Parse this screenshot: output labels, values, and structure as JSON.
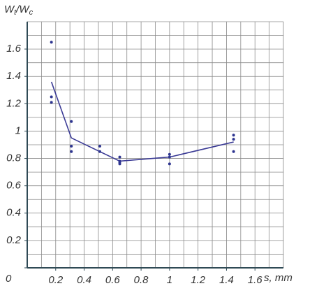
{
  "chart_data": {
    "type": "scatter",
    "y_label_parts": [
      "W",
      "t",
      "/W",
      "c"
    ],
    "x_label": "s, mm",
    "xlim": [
      0,
      1.8
    ],
    "ylim": [
      0,
      1.8
    ],
    "xticks": [
      0.2,
      0.4,
      0.6,
      0.8,
      1.0,
      1.2,
      1.4,
      1.6
    ],
    "yticks": [
      0,
      0.2,
      0.4,
      0.6,
      0.8,
      1.0,
      1.2,
      1.4,
      1.6
    ],
    "xgrid": [
      0.1,
      0.2,
      0.3,
      0.4,
      0.5,
      0.6,
      0.7,
      0.8,
      0.9,
      1.0,
      1.1,
      1.2,
      1.3,
      1.4,
      1.5,
      1.6,
      1.7,
      1.8
    ],
    "ygrid": [
      0.1,
      0.2,
      0.3,
      0.4,
      0.5,
      0.6,
      0.7,
      0.8,
      0.9,
      1.0,
      1.1,
      1.2,
      1.3,
      1.4,
      1.5,
      1.6,
      1.7,
      1.8
    ],
    "grid_color": "#8a8a8a",
    "axis_color": "#2f4a55",
    "series": [
      {
        "kind": "line",
        "color": "#3b3b95",
        "x": [
          0.17,
          0.31,
          0.65,
          1.0,
          1.45
        ],
        "values": [
          1.36,
          0.95,
          0.78,
          0.81,
          0.92
        ]
      },
      {
        "kind": "points",
        "color": "#2e3590",
        "x": [
          0.17,
          0.17,
          0.17,
          0.31,
          0.31,
          0.31,
          0.51,
          0.51,
          0.65,
          0.65,
          0.65,
          0.65,
          1.0,
          1.0,
          1.0,
          1.45,
          1.45,
          1.45
        ],
        "values": [
          1.65,
          1.25,
          1.21,
          1.07,
          0.89,
          0.85,
          0.89,
          0.85,
          0.81,
          0.78,
          0.77,
          0.76,
          0.83,
          0.81,
          0.76,
          0.97,
          0.94,
          0.85
        ]
      }
    ]
  }
}
